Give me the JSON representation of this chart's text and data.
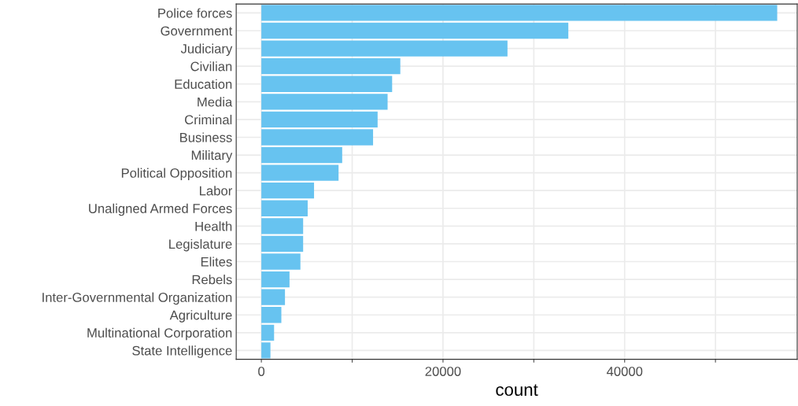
{
  "chart_data": {
    "type": "bar",
    "orientation": "horizontal",
    "xlabel": "count",
    "categories": [
      "Police forces",
      "Government",
      "Judiciary",
      "Civilian",
      "Education",
      "Media",
      "Criminal",
      "Business",
      "Military",
      "Political Opposition",
      "Labor",
      "Unaligned Armed Forces",
      "Health",
      "Legislature",
      "Elites",
      "Rebels",
      "Inter-Governmental Organization",
      "Agriculture",
      "Multinational Corporation",
      "State Intelligence"
    ],
    "values": [
      56800,
      33800,
      27100,
      15300,
      14400,
      13900,
      12800,
      12300,
      8900,
      8500,
      5800,
      5100,
      4600,
      4600,
      4300,
      3100,
      2600,
      2200,
      1400,
      1000
    ],
    "color": "#67c3f0",
    "xlim": [
      -2770,
      59000
    ],
    "xticks": [
      0,
      {
        "value": 10000,
        "label": null
      },
      20000,
      {
        "value": 30000,
        "label": null
      },
      40000,
      {
        "value": 50000,
        "label": null
      }
    ],
    "grid": true
  }
}
